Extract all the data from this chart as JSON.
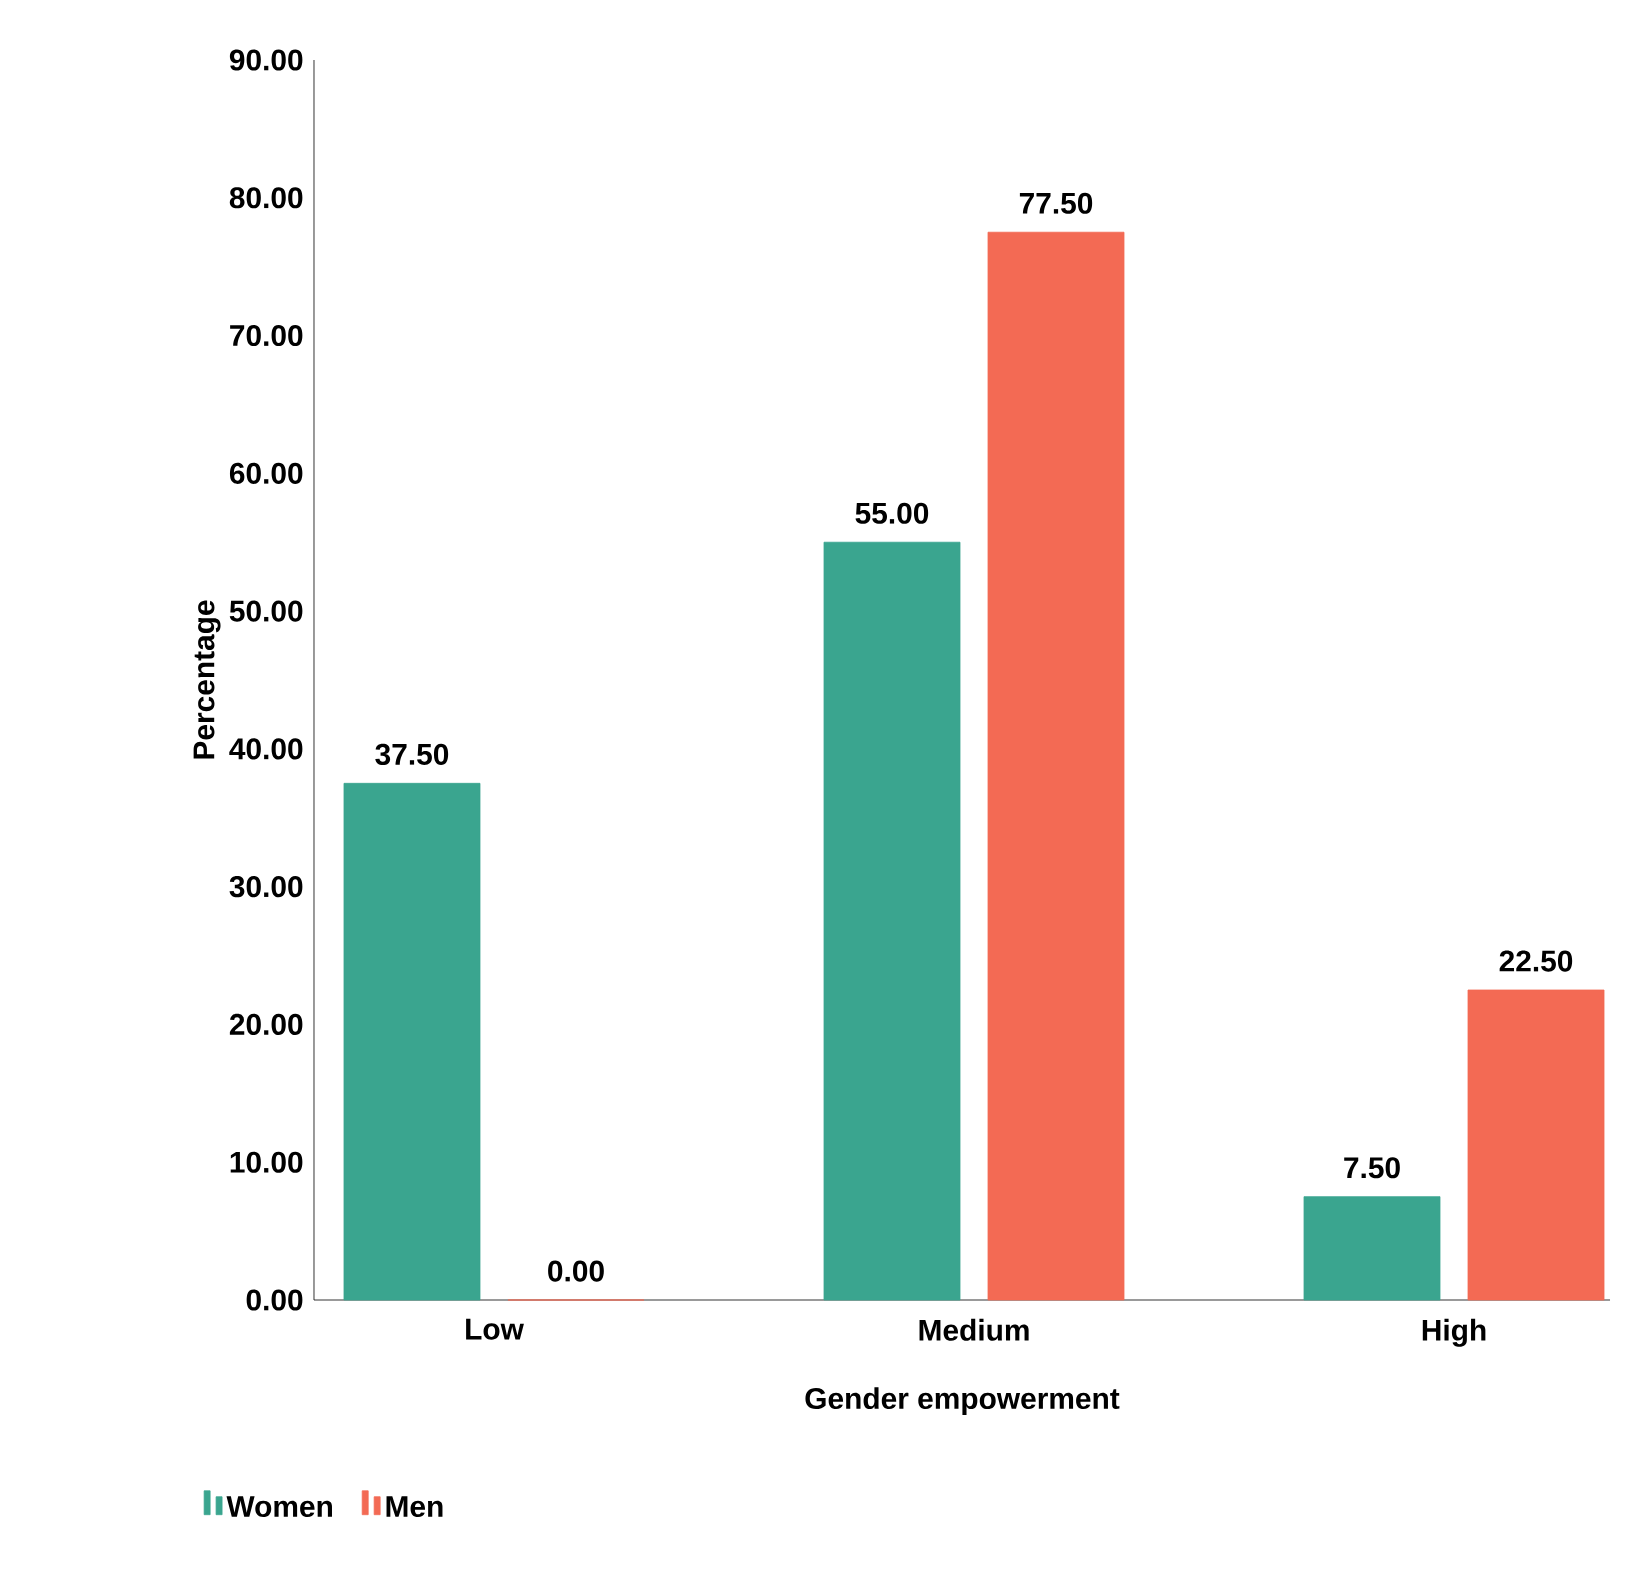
{
  "chart_data": {
    "type": "bar",
    "xlabel": "Gender empowerment",
    "ylabel": "Percentage",
    "categories": [
      "Low",
      "Medium",
      "High"
    ],
    "series": [
      {
        "name": "Women",
        "color": "#3aa58f",
        "values": [
          37.5,
          55,
          7.5
        ],
        "value_labels": [
          "37.50",
          "55.00",
          "7.50"
        ]
      },
      {
        "name": "Men",
        "color": "#f36a54",
        "values": [
          0,
          77.5,
          22.5
        ],
        "value_labels": [
          "0.00",
          "77.50",
          "22.50"
        ]
      }
    ],
    "ylim": [
      0,
      90
    ],
    "yticks": [
      {
        "value": 0,
        "label": "0.00"
      },
      {
        "value": 10,
        "label": "10.00"
      },
      {
        "value": 20,
        "label": "20.00"
      },
      {
        "value": 30,
        "label": "30.00"
      },
      {
        "value": 40,
        "label": "40.00"
      },
      {
        "value": 50,
        "label": "50.00"
      },
      {
        "value": 60,
        "label": "60.00"
      },
      {
        "value": 70,
        "label": "70.00"
      },
      {
        "value": 80,
        "label": "80.00"
      },
      {
        "value": 90,
        "label": "90.00"
      }
    ],
    "grid": false,
    "legend": "bottom left"
  }
}
